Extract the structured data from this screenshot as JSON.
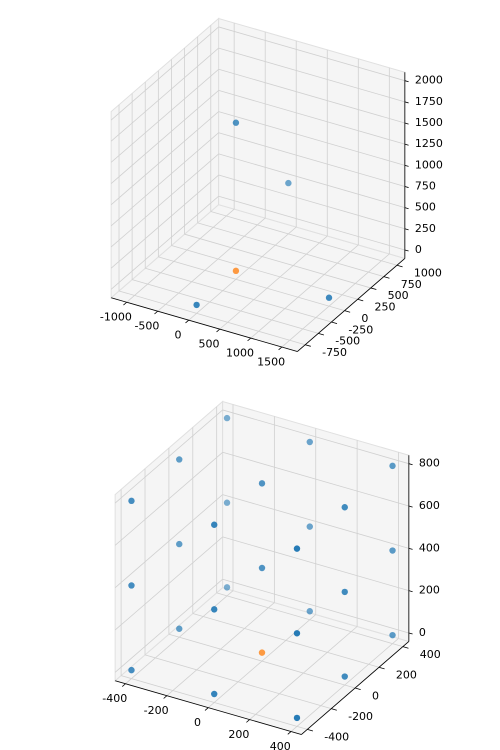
{
  "chart_data": [
    {
      "type": "scatter3d",
      "xlim": [
        -1250,
        1750
      ],
      "ylim": [
        -900,
        1150
      ],
      "zlim": [
        -100,
        2100
      ],
      "xticks": [
        -1000,
        -500,
        0,
        500,
        1000,
        1500
      ],
      "yticks": [
        -750,
        -500,
        -250,
        0,
        250,
        500,
        750,
        1000
      ],
      "zticks": [
        0,
        250,
        500,
        750,
        1000,
        1250,
        1500,
        1750,
        2000
      ],
      "grid": true,
      "series": [
        {
          "color": "#1f77b4",
          "x": [
            0,
            0,
            1500,
            0
          ],
          "y": [
            0,
            1000,
            0,
            -750
          ],
          "z": [
            1750,
            500,
            0,
            0
          ]
        },
        {
          "color": "#ff7f0e",
          "x": [
            0
          ],
          "y": [
            0
          ],
          "z": [
            0
          ]
        }
      ]
    },
    {
      "type": "scatter3d",
      "xlim": [
        -450,
        450
      ],
      "ylim": [
        -450,
        450
      ],
      "zlim": [
        -40,
        840
      ],
      "xticks": [
        -400,
        -200,
        0,
        200,
        400
      ],
      "yticks": [
        -400,
        -200,
        0,
        200,
        400
      ],
      "zticks": [
        0,
        200,
        400,
        600,
        800
      ],
      "grid": true,
      "series": [
        {
          "color": "#1f77b4",
          "x": [
            -400,
            -400,
            -400,
            -400,
            -400,
            -400,
            -400,
            -400,
            -400,
            0,
            0,
            0,
            0,
            0,
            0,
            0,
            0,
            400,
            400,
            400,
            400,
            400,
            400,
            400,
            400,
            400
          ],
          "y": [
            -400,
            -400,
            -400,
            0,
            0,
            0,
            400,
            400,
            400,
            -400,
            -400,
            -400,
            0,
            0,
            400,
            400,
            400,
            -400,
            -400,
            -400,
            0,
            0,
            0,
            400,
            400,
            400
          ],
          "z": [
            0,
            400,
            800,
            0,
            400,
            800,
            0,
            400,
            800,
            0,
            400,
            800,
            400,
            800,
            0,
            400,
            800,
            0,
            400,
            800,
            0,
            400,
            800,
            0,
            400,
            800
          ]
        },
        {
          "color": "#ff7f0e",
          "x": [
            0
          ],
          "y": [
            0
          ],
          "z": [
            0
          ]
        }
      ]
    }
  ]
}
